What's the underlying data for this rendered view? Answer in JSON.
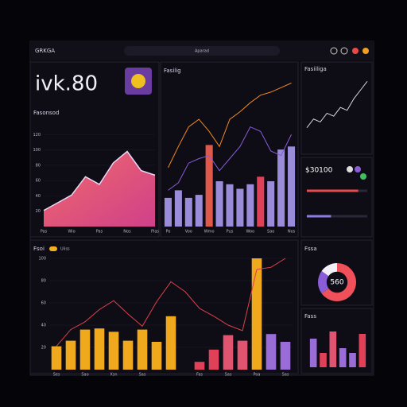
{
  "header": {
    "brand": "GRKGA",
    "search": "Aparad",
    "kpi": "ivk.80"
  },
  "chart_data": [
    {
      "type": "area",
      "title": "Fasonsod",
      "color": "#f0506e",
      "categories": [
        "Pas",
        null,
        "Wio",
        null,
        "Pas",
        null,
        "Nos",
        null,
        "Plas"
      ],
      "values": [
        21,
        31,
        41,
        65,
        55,
        83,
        98,
        73,
        67
      ],
      "ylim": [
        0,
        140
      ],
      "yticks": [
        20,
        40,
        60,
        80,
        100,
        120
      ]
    },
    {
      "type": "bar",
      "title": "Fasilig",
      "categories": [
        "Po",
        null,
        "Voo",
        null,
        "Wmo",
        null,
        "Pus",
        null,
        "Woo",
        null,
        "Sao",
        null,
        "Nos"
      ],
      "values": [
        19,
        24,
        19,
        21,
        54,
        30,
        28,
        25,
        28,
        33,
        30,
        51,
        53
      ],
      "colors": [
        "#9a8cd8",
        "#9a8cd8",
        "#9a8cd8",
        "#9a8cd8",
        "#e0584a",
        "#9a8cd8",
        "#9a8cd8",
        "#9a8cd8",
        "#9a8cd8",
        "#e04058",
        "#9a8cd8",
        "#9a8cd8",
        "#9a8cd8"
      ],
      "series": [
        {
          "color": "#f08a24",
          "values": [
            39,
            53,
            66,
            71,
            63,
            53,
            71,
            76,
            82,
            87,
            89,
            92,
            95
          ]
        },
        {
          "color": "#8a5cd8",
          "values": [
            24,
            29,
            42,
            45,
            47,
            37,
            45,
            53,
            66,
            63,
            50,
            47,
            61
          ]
        }
      ],
      "ylim": [
        0,
        100
      ]
    },
    {
      "type": "line",
      "title": "Fasiiliga",
      "color": "#d8d4e8",
      "values": [
        10,
        25,
        20,
        35,
        30,
        45,
        40,
        60,
        75,
        90
      ],
      "ylim": [
        0,
        100
      ]
    },
    {
      "type": "progress",
      "title": "$30100",
      "values": [
        85,
        40
      ],
      "colors": [
        "#e84a4a",
        "#8a7ce0"
      ],
      "ylim": [
        0,
        100
      ]
    },
    {
      "type": "bar",
      "title": "Fsoi",
      "legend": "Uiiss",
      "legend_color": "#f0b020",
      "categories": [
        "Ses",
        null,
        "Sao",
        null,
        "Xsn",
        null,
        "Sas",
        null,
        null,
        null,
        "Fas",
        null,
        "Sas",
        null,
        "Poa",
        null,
        "Sas"
      ],
      "values": [
        21,
        26,
        36,
        37,
        34,
        26,
        36,
        25,
        48,
        null,
        7,
        18,
        31,
        26,
        100,
        32,
        25
      ],
      "colors": [
        "#f0a81c",
        "#f0a81c",
        "#f0a81c",
        "#f0a81c",
        "#f0a81c",
        "#f0a81c",
        "#f0a81c",
        "#f0a81c",
        "#f0a81c",
        "#e04058",
        "#e04058",
        "#e04058",
        "#e05470",
        "#e05470",
        "#f0a81c",
        "#9a6cd8",
        "#9a6cd8"
      ],
      "series": [
        {
          "color": "#e0404a",
          "values": [
            21,
            36,
            43,
            54,
            62,
            50,
            39,
            61,
            79,
            70,
            55,
            48,
            40,
            35,
            90,
            92,
            100
          ]
        }
      ],
      "ylim": [
        0,
        100
      ],
      "yticks": [
        20,
        40,
        60,
        80,
        100
      ]
    },
    {
      "type": "pie",
      "title": "Fssa",
      "center_label": "560",
      "values": [
        65,
        20,
        15
      ],
      "colors": [
        "#f0505a",
        "#8a5cd8",
        "#f4f0f8"
      ]
    },
    {
      "type": "bar",
      "title": "Fass",
      "values": [
        60,
        30,
        75,
        40,
        30,
        70
      ],
      "colors": [
        "#9a6cd8",
        "#e04058",
        "#e05470",
        "#9a6cd8",
        "#9a6cd8",
        "#e04058"
      ],
      "ylim": [
        0,
        100
      ]
    }
  ]
}
